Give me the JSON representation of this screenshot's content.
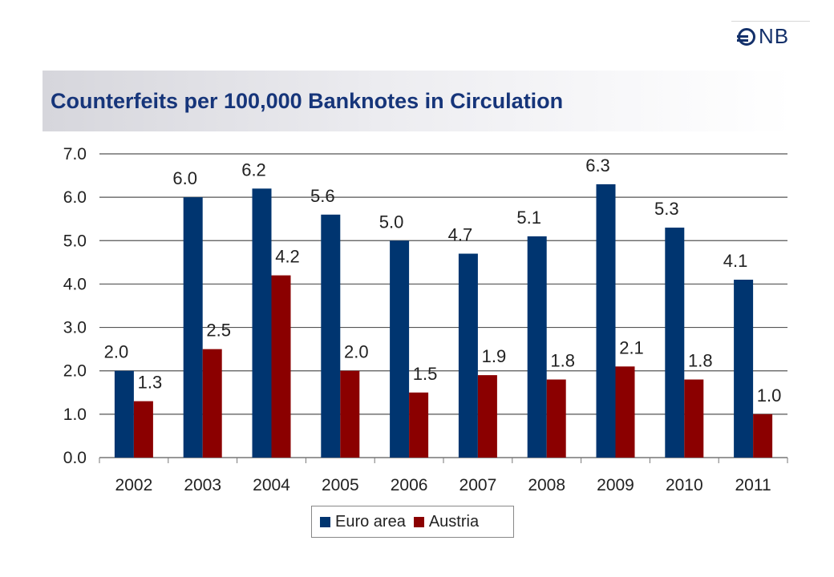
{
  "logo": {
    "text": "NB"
  },
  "title": "Counterfeits per 100,000 Banknotes in Circulation",
  "chart_data": {
    "type": "bar",
    "title": "Counterfeits per 100,000 Banknotes in Circulation",
    "xlabel": "",
    "ylabel": "",
    "ylim": [
      0,
      7
    ],
    "yticks": [
      "0.0",
      "1.0",
      "2.0",
      "3.0",
      "4.0",
      "5.0",
      "6.0",
      "7.0"
    ],
    "grid": true,
    "legend_position": "bottom",
    "categories": [
      "2002",
      "2003",
      "2004",
      "2005",
      "2006",
      "2007",
      "2008",
      "2009",
      "2010",
      "2011"
    ],
    "series": [
      {
        "name": "Euro area",
        "color": "#003570",
        "values": [
          2.0,
          6.0,
          6.2,
          5.6,
          5.0,
          4.7,
          5.1,
          6.3,
          5.3,
          4.1
        ],
        "labels": [
          "2.0",
          "6.0",
          "6.2",
          "5.6",
          "5.0",
          "4.7",
          "5.1",
          "6.3",
          "5.3",
          "4.1"
        ]
      },
      {
        "name": "Austria",
        "color": "#8b0000",
        "values": [
          1.3,
          2.5,
          4.2,
          2.0,
          1.5,
          1.9,
          1.8,
          2.1,
          1.8,
          1.0
        ],
        "labels": [
          "1.3",
          "2.5",
          "4.2",
          "2.0",
          "1.5",
          "1.9",
          "1.8",
          "2.1",
          "1.8",
          "1.0"
        ]
      }
    ]
  }
}
